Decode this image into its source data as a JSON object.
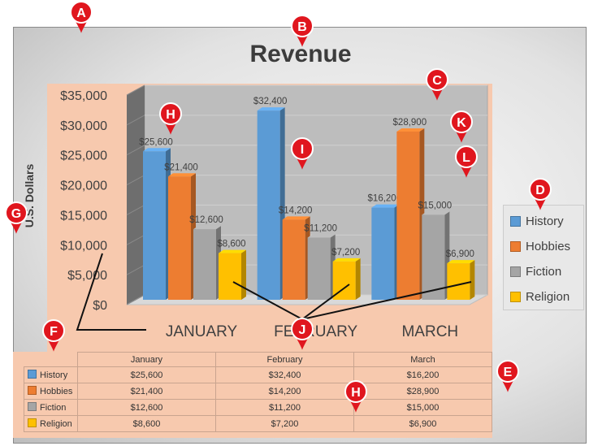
{
  "chart_data": {
    "type": "bar",
    "title": "Revenue",
    "ylabel": "U.S. Dollars",
    "ylim": [
      0,
      35000
    ],
    "y_ticks": [
      "$0",
      "$5,000",
      "$10,000",
      "$15,000",
      "$20,000",
      "$25,000",
      "$30,000",
      "$35,000"
    ],
    "categories": [
      "JANUARY",
      "FEBRUARY",
      "MARCH"
    ],
    "series": [
      {
        "name": "History",
        "color": "#5b9bd5",
        "values": [
          25600,
          32400,
          16200
        ],
        "labels": [
          "$25,600",
          "$32,400",
          "$16,200"
        ]
      },
      {
        "name": "Hobbies",
        "color": "#ed7d31",
        "values": [
          21400,
          14200,
          28900
        ],
        "labels": [
          "$21,400",
          "$14,200",
          "$28,900"
        ]
      },
      {
        "name": "Fiction",
        "color": "#a5a5a5",
        "values": [
          12600,
          11200,
          15000
        ],
        "labels": [
          "$12,600",
          "$11,200",
          "$15,000"
        ]
      },
      {
        "name": "Religion",
        "color": "#ffc000",
        "values": [
          8600,
          7200,
          6900
        ],
        "labels": [
          "$8,600",
          "$7,200",
          "$6,900"
        ]
      }
    ],
    "legend_position": "right",
    "grid": true,
    "style": "3d-clustered-column"
  },
  "data_table": {
    "columns": [
      "January",
      "February",
      "March"
    ],
    "rows": [
      {
        "name": "History",
        "color": "#5b9bd5",
        "cells": [
          "$25,600",
          "$32,400",
          "$16,200"
        ]
      },
      {
        "name": "Hobbies",
        "color": "#ed7d31",
        "cells": [
          "$21,400",
          "$14,200",
          "$28,900"
        ]
      },
      {
        "name": "Fiction",
        "color": "#a5a5a5",
        "cells": [
          "$12,600",
          "$11,200",
          "$15,000"
        ]
      },
      {
        "name": "Religion",
        "color": "#ffc000",
        "cells": [
          "$8,600",
          "$7,200",
          "$6,900"
        ]
      }
    ]
  },
  "callouts": [
    "A",
    "B",
    "C",
    "D",
    "E",
    "F",
    "G",
    "H",
    "H",
    "I",
    "J",
    "K",
    "L"
  ],
  "colors": {
    "callout": "#e0161e",
    "plot_area": "#f7c9ae"
  }
}
